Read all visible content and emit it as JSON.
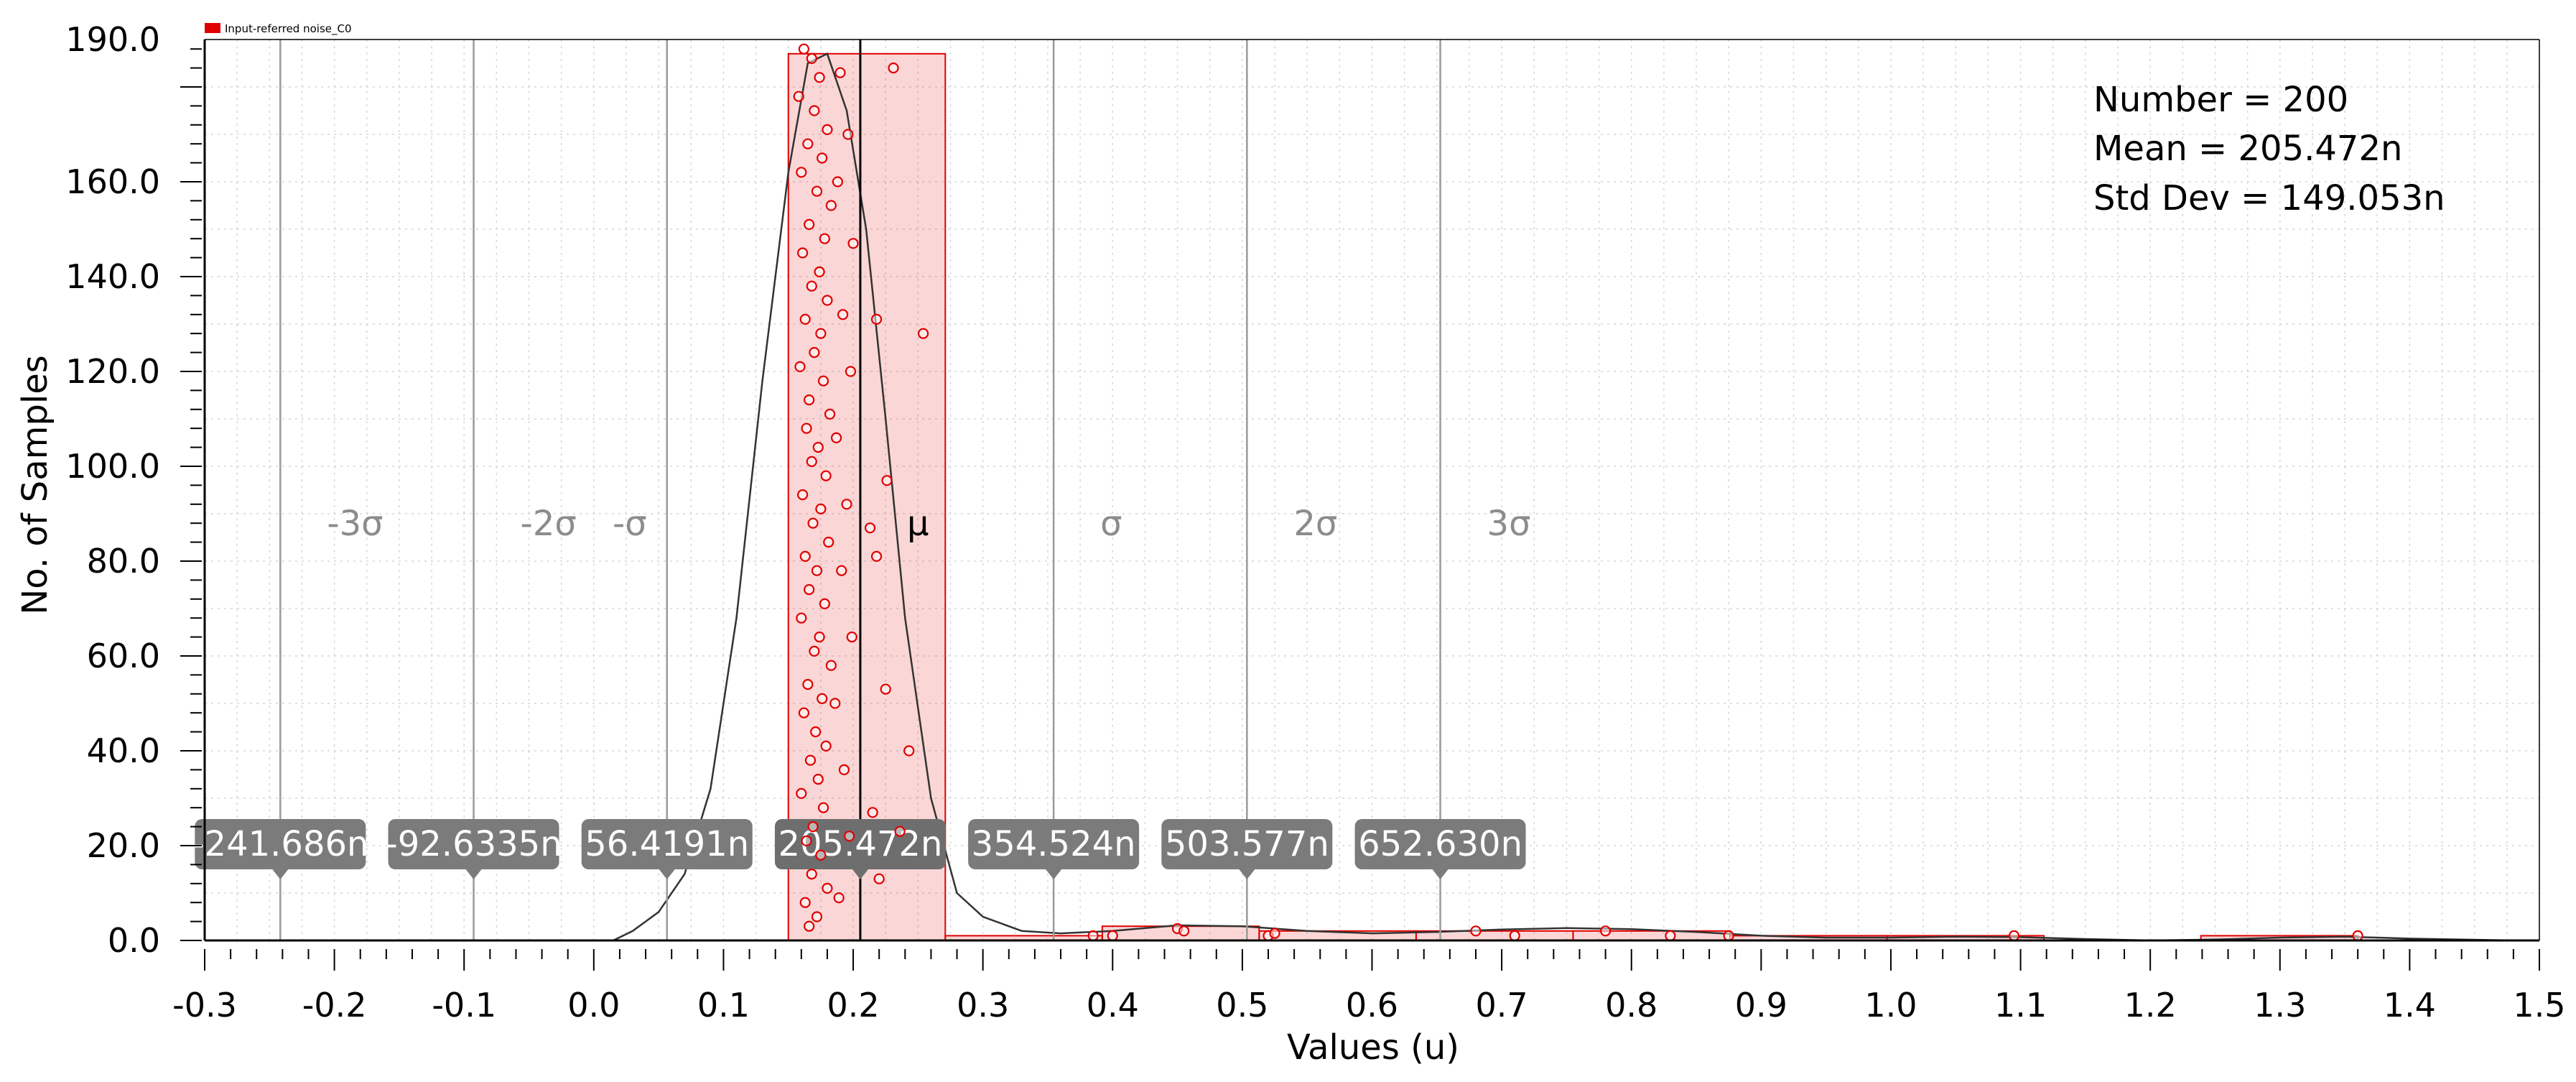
{
  "chart_data": {
    "type": "histogram",
    "legend": {
      "label": "Input-referred noise_C0",
      "color": "#e00000",
      "placement": "top-left"
    },
    "xlabel": "Values (u)",
    "ylabel": "No. of Samples",
    "xlim": [
      -0.3,
      1.5
    ],
    "ylim": [
      0,
      190
    ],
    "x_ticks": [
      "-0.3",
      "-0.2",
      "-0.1",
      "0.0",
      "0.1",
      "0.2",
      "0.3",
      "0.4",
      "0.5",
      "0.6",
      "0.7",
      "0.8",
      "0.9",
      "1.0",
      "1.1",
      "1.2",
      "1.3",
      "1.4",
      "1.5"
    ],
    "y_ticks": [
      "0.0",
      "20.0",
      "40.0",
      "60.0",
      "80.0",
      "100.0",
      "120.0",
      "140.0",
      "160.0",
      "190.0"
    ],
    "y_tick_values": [
      0,
      20,
      40,
      60,
      80,
      100,
      120,
      140,
      160,
      190
    ],
    "grid": true,
    "bins": [
      {
        "x0": 0.15,
        "x1": 0.271,
        "count": 187
      },
      {
        "x0": 0.271,
        "x1": 0.392,
        "count": 1
      },
      {
        "x0": 0.392,
        "x1": 0.513,
        "count": 3
      },
      {
        "x0": 0.513,
        "x1": 0.634,
        "count": 2
      },
      {
        "x0": 0.634,
        "x1": 0.755,
        "count": 2
      },
      {
        "x0": 0.755,
        "x1": 0.876,
        "count": 2
      },
      {
        "x0": 0.876,
        "x1": 0.997,
        "count": 1
      },
      {
        "x0": 0.997,
        "x1": 1.118,
        "count": 1
      },
      {
        "x0": 1.118,
        "x1": 1.239,
        "count": 0
      },
      {
        "x0": 1.239,
        "x1": 1.36,
        "count": 1
      }
    ],
    "density_curve": [
      [
        0.015,
        0
      ],
      [
        0.03,
        2
      ],
      [
        0.05,
        6
      ],
      [
        0.07,
        14
      ],
      [
        0.09,
        32
      ],
      [
        0.11,
        68
      ],
      [
        0.13,
        118
      ],
      [
        0.15,
        162
      ],
      [
        0.165,
        185
      ],
      [
        0.18,
        187
      ],
      [
        0.195,
        175
      ],
      [
        0.21,
        150
      ],
      [
        0.225,
        110
      ],
      [
        0.24,
        68
      ],
      [
        0.26,
        30
      ],
      [
        0.28,
        10
      ],
      [
        0.3,
        5
      ],
      [
        0.33,
        2
      ],
      [
        0.36,
        1.5
      ],
      [
        0.4,
        2
      ],
      [
        0.45,
        3.2
      ],
      [
        0.5,
        3
      ],
      [
        0.55,
        2
      ],
      [
        0.6,
        1.5
      ],
      [
        0.65,
        1.8
      ],
      [
        0.7,
        2.3
      ],
      [
        0.75,
        2.6
      ],
      [
        0.8,
        2.4
      ],
      [
        0.85,
        1.8
      ],
      [
        0.9,
        1
      ],
      [
        0.95,
        0.6
      ],
      [
        1.0,
        0.6
      ],
      [
        1.05,
        0.8
      ],
      [
        1.1,
        0.7
      ],
      [
        1.15,
        0.3
      ],
      [
        1.2,
        0
      ],
      [
        1.25,
        0.2
      ],
      [
        1.3,
        0.6
      ],
      [
        1.35,
        0.8
      ],
      [
        1.4,
        0.4
      ],
      [
        1.48,
        0
      ]
    ],
    "points": [
      [
        0.162,
        188
      ],
      [
        0.168,
        186
      ],
      [
        0.174,
        182
      ],
      [
        0.158,
        178
      ],
      [
        0.17,
        175
      ],
      [
        0.18,
        171
      ],
      [
        0.165,
        168
      ],
      [
        0.176,
        165
      ],
      [
        0.16,
        162
      ],
      [
        0.172,
        158
      ],
      [
        0.183,
        155
      ],
      [
        0.166,
        151
      ],
      [
        0.178,
        148
      ],
      [
        0.161,
        145
      ],
      [
        0.174,
        141
      ],
      [
        0.168,
        138
      ],
      [
        0.18,
        135
      ],
      [
        0.163,
        131
      ],
      [
        0.175,
        128
      ],
      [
        0.17,
        124
      ],
      [
        0.159,
        121
      ],
      [
        0.177,
        118
      ],
      [
        0.166,
        114
      ],
      [
        0.182,
        111
      ],
      [
        0.164,
        108
      ],
      [
        0.173,
        104
      ],
      [
        0.168,
        101
      ],
      [
        0.179,
        98
      ],
      [
        0.161,
        94
      ],
      [
        0.175,
        91
      ],
      [
        0.169,
        88
      ],
      [
        0.181,
        84
      ],
      [
        0.163,
        81
      ],
      [
        0.172,
        78
      ],
      [
        0.166,
        74
      ],
      [
        0.178,
        71
      ],
      [
        0.16,
        68
      ],
      [
        0.174,
        64
      ],
      [
        0.17,
        61
      ],
      [
        0.183,
        58
      ],
      [
        0.165,
        54
      ],
      [
        0.176,
        51
      ],
      [
        0.162,
        48
      ],
      [
        0.171,
        44
      ],
      [
        0.179,
        41
      ],
      [
        0.167,
        38
      ],
      [
        0.173,
        34
      ],
      [
        0.16,
        31
      ],
      [
        0.177,
        28
      ],
      [
        0.169,
        24
      ],
      [
        0.164,
        21
      ],
      [
        0.175,
        18
      ],
      [
        0.168,
        14
      ],
      [
        0.18,
        11
      ],
      [
        0.163,
        8
      ],
      [
        0.172,
        5
      ],
      [
        0.166,
        3
      ],
      [
        0.19,
        183
      ],
      [
        0.196,
        170
      ],
      [
        0.188,
        160
      ],
      [
        0.2,
        147
      ],
      [
        0.192,
        132
      ],
      [
        0.198,
        120
      ],
      [
        0.187,
        106
      ],
      [
        0.195,
        92
      ],
      [
        0.191,
        78
      ],
      [
        0.199,
        64
      ],
      [
        0.186,
        50
      ],
      [
        0.193,
        36
      ],
      [
        0.197,
        22
      ],
      [
        0.189,
        9
      ],
      [
        0.254,
        128
      ],
      [
        0.243,
        40
      ],
      [
        0.226,
        97
      ],
      [
        0.213,
        87
      ],
      [
        0.218,
        131
      ],
      [
        0.231,
        184
      ],
      [
        0.22,
        13
      ],
      [
        0.236,
        23
      ],
      [
        0.215,
        27
      ],
      [
        0.225,
        53
      ],
      [
        0.218,
        81
      ],
      [
        0.385,
        1
      ],
      [
        0.4,
        1
      ],
      [
        0.45,
        2.5
      ],
      [
        0.455,
        2
      ],
      [
        0.52,
        1
      ],
      [
        0.525,
        1.5
      ],
      [
        0.68,
        2
      ],
      [
        0.71,
        1
      ],
      [
        0.78,
        2
      ],
      [
        0.83,
        1
      ],
      [
        0.875,
        1
      ],
      [
        1.095,
        1
      ],
      [
        1.36,
        1
      ]
    ],
    "markers": [
      {
        "x": -0.241686,
        "label": "-241.686n",
        "sigma": "-3σ"
      },
      {
        "x": -0.0926335,
        "label": "-92.6335n",
        "sigma": "-2σ"
      },
      {
        "x": 0.0564191,
        "label": "56.4191n",
        "sigma": "-σ"
      },
      {
        "x": 0.205472,
        "label": "205.472n",
        "sigma": "μ"
      },
      {
        "x": 0.354524,
        "label": "354.524n",
        "sigma": "σ"
      },
      {
        "x": 0.503577,
        "label": "503.577n",
        "sigma": "2σ"
      },
      {
        "x": 0.65263,
        "label": "652.630n",
        "sigma": "3σ"
      }
    ],
    "stats": [
      "Number = 200",
      "Mean = 205.472n",
      "Std Dev = 149.053n"
    ]
  }
}
